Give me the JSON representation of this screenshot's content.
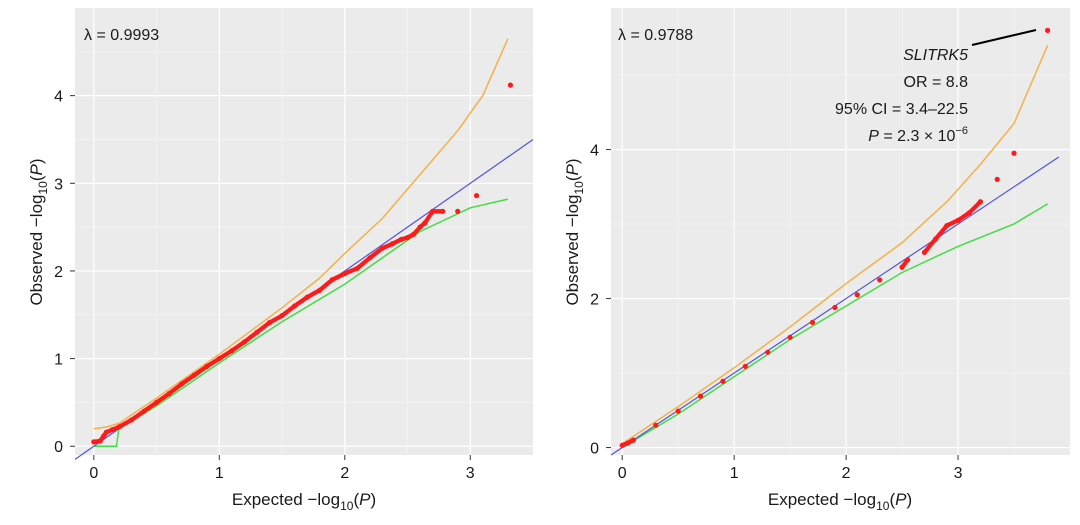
{
  "chart_data": [
    {
      "type": "scatter",
      "lambda_label": "λ = 0.9993",
      "xlabel": "Expected −log10(P)",
      "ylabel": "Observed −log10(P)",
      "xlim": [
        -0.15,
        3.5
      ],
      "ylim": [
        -0.1,
        5.0
      ],
      "x_ticks": [
        "0",
        "1",
        "2",
        "3"
      ],
      "y_ticks": [
        "0",
        "1",
        "2",
        "3",
        "4"
      ],
      "grid": true,
      "colors": {
        "points": "#ff1a1a",
        "diagonal": "#5555dd",
        "upper_ci": "#f2b24a",
        "lower_ci": "#44dd44"
      },
      "diagonal": [
        [
          -0.15,
          -0.15
        ],
        [
          3.5,
          3.5
        ]
      ],
      "upper_ci": [
        [
          0.0,
          0.2
        ],
        [
          0.1,
          0.22
        ],
        [
          0.2,
          0.26
        ],
        [
          0.5,
          0.55
        ],
        [
          1.0,
          1.05
        ],
        [
          1.5,
          1.58
        ],
        [
          1.8,
          1.92
        ],
        [
          2.0,
          2.2
        ],
        [
          2.3,
          2.6
        ],
        [
          2.6,
          3.1
        ],
        [
          2.9,
          3.6
        ],
        [
          3.1,
          4.0
        ],
        [
          3.3,
          4.65
        ]
      ],
      "lower_ci": [
        [
          0.0,
          0.0
        ],
        [
          0.18,
          0.0
        ],
        [
          0.2,
          0.2
        ],
        [
          0.5,
          0.46
        ],
        [
          1.0,
          0.95
        ],
        [
          1.5,
          1.42
        ],
        [
          2.0,
          1.85
        ],
        [
          2.3,
          2.15
        ],
        [
          2.6,
          2.45
        ],
        [
          3.0,
          2.72
        ],
        [
          3.3,
          2.82
        ]
      ],
      "points": [
        [
          0.0,
          0.05
        ],
        [
          0.05,
          0.06
        ],
        [
          0.08,
          0.12
        ],
        [
          0.1,
          0.16
        ],
        [
          0.15,
          0.19
        ],
        [
          0.2,
          0.22
        ],
        [
          0.3,
          0.3
        ],
        [
          0.4,
          0.4
        ],
        [
          0.5,
          0.5
        ],
        [
          0.6,
          0.6
        ],
        [
          0.7,
          0.71
        ],
        [
          0.8,
          0.81
        ],
        [
          0.9,
          0.91
        ],
        [
          1.0,
          1.0
        ],
        [
          1.1,
          1.09
        ],
        [
          1.2,
          1.19
        ],
        [
          1.3,
          1.3
        ],
        [
          1.4,
          1.41
        ],
        [
          1.5,
          1.49
        ],
        [
          1.6,
          1.6
        ],
        [
          1.7,
          1.7
        ],
        [
          1.8,
          1.78
        ],
        [
          1.9,
          1.9
        ],
        [
          2.0,
          1.97
        ],
        [
          2.1,
          2.03
        ],
        [
          2.2,
          2.15
        ],
        [
          2.3,
          2.26
        ],
        [
          2.38,
          2.31
        ],
        [
          2.45,
          2.36
        ],
        [
          2.5,
          2.38
        ],
        [
          2.55,
          2.42
        ],
        [
          2.6,
          2.5
        ],
        [
          2.64,
          2.55
        ],
        [
          2.7,
          2.68
        ],
        [
          2.78,
          2.68
        ],
        [
          2.9,
          2.68
        ],
        [
          3.05,
          2.86
        ],
        [
          3.32,
          4.12
        ]
      ]
    },
    {
      "type": "scatter",
      "lambda_label": "λ = 0.9788",
      "xlabel": "Expected −log10(P)",
      "ylabel": "Observed −log10(P)",
      "xlim": [
        -0.1,
        4.0
      ],
      "ylim": [
        -0.1,
        5.9
      ],
      "x_ticks": [
        "0",
        "1",
        "2",
        "3"
      ],
      "y_ticks": [
        "0",
        "2",
        "4"
      ],
      "grid": true,
      "colors": {
        "points": "#ff1a1a",
        "diagonal": "#5555dd",
        "upper_ci": "#f2b24a",
        "lower_ci": "#44dd44"
      },
      "diagonal": [
        [
          -0.1,
          -0.1
        ],
        [
          3.9,
          3.9
        ]
      ],
      "upper_ci": [
        [
          0.0,
          0.05
        ],
        [
          0.5,
          0.55
        ],
        [
          1.0,
          1.07
        ],
        [
          1.5,
          1.62
        ],
        [
          2.0,
          2.2
        ],
        [
          2.5,
          2.75
        ],
        [
          2.9,
          3.3
        ],
        [
          3.2,
          3.8
        ],
        [
          3.5,
          4.35
        ],
        [
          3.8,
          5.4
        ]
      ],
      "lower_ci": [
        [
          0.0,
          0.0
        ],
        [
          0.5,
          0.45
        ],
        [
          1.0,
          0.95
        ],
        [
          1.5,
          1.45
        ],
        [
          2.0,
          1.9
        ],
        [
          2.5,
          2.35
        ],
        [
          3.0,
          2.7
        ],
        [
          3.5,
          3.0
        ],
        [
          3.8,
          3.27
        ]
      ],
      "points": [
        [
          0.0,
          0.03
        ],
        [
          0.05,
          0.06
        ],
        [
          0.1,
          0.1
        ],
        [
          0.3,
          0.3
        ],
        [
          0.5,
          0.49
        ],
        [
          0.7,
          0.69
        ],
        [
          0.9,
          0.89
        ],
        [
          1.1,
          1.09
        ],
        [
          1.3,
          1.28
        ],
        [
          1.5,
          1.48
        ],
        [
          1.7,
          1.68
        ],
        [
          1.9,
          1.88
        ],
        [
          2.1,
          2.05
        ],
        [
          2.3,
          2.25
        ],
        [
          2.5,
          2.42
        ],
        [
          2.55,
          2.52
        ],
        [
          2.7,
          2.62
        ],
        [
          2.8,
          2.8
        ],
        [
          2.9,
          2.98
        ],
        [
          3.0,
          3.05
        ],
        [
          3.1,
          3.15
        ],
        [
          3.2,
          3.3
        ],
        [
          3.35,
          3.6
        ],
        [
          3.5,
          3.95
        ],
        [
          3.8,
          5.6
        ]
      ],
      "annotation": {
        "gene": "SLITRK5",
        "or": "OR = 8.8",
        "ci": "95% CI = 3.4–22.5",
        "p_prefix": "P",
        "p_value": " = 2.3 × 10",
        "p_exponent": "−6"
      }
    }
  ]
}
